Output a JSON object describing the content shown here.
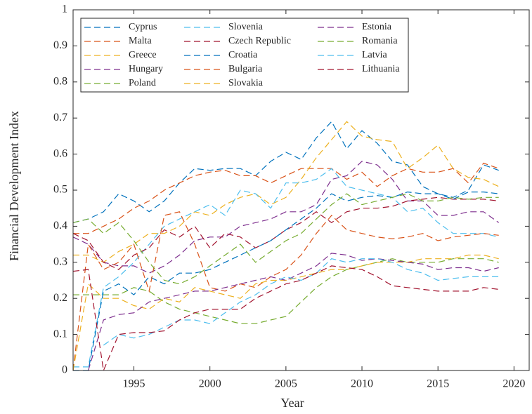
{
  "chart_data": {
    "type": "line",
    "xlabel": "Year",
    "ylabel": "Financial Development Index",
    "x": [
      1991,
      1992,
      1993,
      1994,
      1995,
      1996,
      1997,
      1998,
      1999,
      2000,
      2001,
      2002,
      2003,
      2004,
      2005,
      2006,
      2007,
      2008,
      2009,
      2010,
      2011,
      2012,
      2013,
      2014,
      2015,
      2016,
      2017,
      2018,
      2019
    ],
    "xlim": [
      1991,
      2021
    ],
    "xticks": [
      1995,
      2000,
      2005,
      2010,
      2015,
      2020
    ],
    "ylim": [
      0,
      1
    ],
    "yticks": [
      0,
      0.1,
      0.2,
      0.3,
      0.4,
      0.5,
      0.6,
      0.7,
      0.8,
      0.9,
      1
    ],
    "grid": false,
    "legend": "northwest",
    "dashed": true,
    "series": [
      {
        "name": "Cyprus",
        "color": "#0072BD",
        "values": [
          0.41,
          0.42,
          0.44,
          0.49,
          0.47,
          0.44,
          0.47,
          0.52,
          0.56,
          0.555,
          0.56,
          0.56,
          0.54,
          0.58,
          0.605,
          0.585,
          0.645,
          0.69,
          0.615,
          0.665,
          0.63,
          0.58,
          0.57,
          0.51,
          0.49,
          0.48,
          0.5,
          0.57,
          0.555
        ]
      },
      {
        "name": "Malta",
        "color": "#D95319",
        "values": [
          0.38,
          0.38,
          0.4,
          0.42,
          0.45,
          0.47,
          0.5,
          0.52,
          0.54,
          0.55,
          0.555,
          0.54,
          0.54,
          0.52,
          0.54,
          0.56,
          0.56,
          0.56,
          0.53,
          0.55,
          0.51,
          0.54,
          0.56,
          0.55,
          0.55,
          0.56,
          0.52,
          0.575,
          0.56
        ]
      },
      {
        "name": "Greece",
        "color": "#EDB120",
        "values": [
          0.32,
          0.32,
          0.3,
          0.33,
          0.35,
          0.38,
          0.38,
          0.4,
          0.44,
          0.43,
          0.46,
          0.48,
          0.49,
          0.46,
          0.48,
          0.53,
          0.59,
          0.64,
          0.69,
          0.65,
          0.64,
          0.635,
          0.56,
          0.59,
          0.625,
          0.56,
          0.535,
          0.53,
          0.51
        ]
      },
      {
        "name": "Hungary",
        "color": "#7E2F8E",
        "values": [
          0.37,
          0.35,
          0.3,
          0.29,
          0.29,
          0.27,
          0.29,
          0.32,
          0.36,
          0.37,
          0.37,
          0.4,
          0.41,
          0.42,
          0.44,
          0.44,
          0.46,
          0.53,
          0.54,
          0.58,
          0.57,
          0.53,
          0.47,
          0.47,
          0.43,
          0.43,
          0.44,
          0.44,
          0.41
        ]
      },
      {
        "name": "Poland",
        "color": "#77AC30",
        "values": [
          0.21,
          0.21,
          0.21,
          0.21,
          0.23,
          0.22,
          0.19,
          0.17,
          0.16,
          0.15,
          0.14,
          0.13,
          0.13,
          0.14,
          0.15,
          0.19,
          0.23,
          0.26,
          0.28,
          0.29,
          0.3,
          0.31,
          0.3,
          0.3,
          0.3,
          0.31,
          0.31,
          0.31,
          0.3
        ]
      },
      {
        "name": "Slovenia",
        "color": "#4DBEEE",
        "values": [
          0.01,
          0.01,
          0.23,
          0.26,
          0.3,
          0.35,
          0.4,
          0.42,
          0.44,
          0.46,
          0.43,
          0.5,
          0.49,
          0.45,
          0.52,
          0.52,
          0.53,
          0.56,
          0.51,
          0.5,
          0.49,
          0.48,
          0.44,
          0.45,
          0.41,
          0.38,
          0.38,
          0.38,
          0.37
        ]
      },
      {
        "name": "Czech Republic",
        "color": "#A2142F",
        "values": [
          0.38,
          0.36,
          0.3,
          0.28,
          0.32,
          0.34,
          0.39,
          0.37,
          0.4,
          0.34,
          0.38,
          0.37,
          0.34,
          0.36,
          0.39,
          0.41,
          0.44,
          0.41,
          0.44,
          0.45,
          0.45,
          0.455,
          0.47,
          0.475,
          0.48,
          0.475,
          0.475,
          0.475,
          0.47
        ]
      },
      {
        "name": "Croatia",
        "color": "#0072BD",
        "values": [
          0,
          0,
          0.22,
          0.24,
          0.21,
          0.26,
          0.24,
          0.27,
          0.27,
          0.28,
          0.3,
          0.32,
          0.34,
          0.36,
          0.39,
          0.42,
          0.45,
          0.49,
          0.47,
          0.48,
          0.485,
          0.48,
          0.495,
          0.49,
          0.49,
          0.475,
          0.495,
          0.495,
          0.49
        ]
      },
      {
        "name": "Bulgaria",
        "color": "#D95319",
        "values": [
          0,
          0.35,
          0.28,
          0.3,
          0.35,
          0.22,
          0.43,
          0.44,
          0.35,
          0.23,
          0.22,
          0.24,
          0.23,
          0.26,
          0.28,
          0.32,
          0.38,
          0.43,
          0.39,
          0.38,
          0.37,
          0.365,
          0.37,
          0.38,
          0.36,
          0.37,
          0.375,
          0.38,
          0.375
        ]
      },
      {
        "name": "Slovakia",
        "color": "#EDB120",
        "values": [
          0,
          0.24,
          0.2,
          0.2,
          0.18,
          0.17,
          0.2,
          0.19,
          0.23,
          0.22,
          0.21,
          0.2,
          0.24,
          0.25,
          0.25,
          0.26,
          0.27,
          0.28,
          0.28,
          0.29,
          0.3,
          0.3,
          0.3,
          0.31,
          0.31,
          0.31,
          0.32,
          0.32,
          0.31
        ]
      },
      {
        "name": "Estonia",
        "color": "#7E2F8E",
        "values": [
          null,
          0,
          0.14,
          0.155,
          0.16,
          0.19,
          0.2,
          0.21,
          0.22,
          0.22,
          0.23,
          0.24,
          0.25,
          0.26,
          0.25,
          0.27,
          0.29,
          0.325,
          0.32,
          0.305,
          0.31,
          0.305,
          0.3,
          0.295,
          0.28,
          0.285,
          0.285,
          0.275,
          0.285
        ]
      },
      {
        "name": "Romania",
        "color": "#77AC30",
        "values": [
          0.41,
          0.42,
          0.38,
          0.41,
          0.36,
          0.3,
          0.25,
          0.24,
          0.26,
          0.29,
          0.32,
          0.35,
          0.3,
          0.33,
          0.36,
          0.38,
          0.42,
          0.46,
          0.49,
          0.46,
          0.47,
          0.48,
          0.49,
          0.47,
          0.47,
          0.48,
          0.475,
          0.48,
          0.48
        ]
      },
      {
        "name": "Latvia",
        "color": "#4DBEEE",
        "values": [
          null,
          null,
          0.07,
          0.1,
          0.09,
          0.1,
          0.12,
          0.14,
          0.14,
          0.13,
          0.16,
          0.19,
          0.21,
          0.24,
          0.26,
          0.25,
          0.27,
          0.31,
          0.3,
          0.31,
          0.31,
          0.3,
          0.28,
          0.27,
          0.25,
          0.255,
          0.26,
          0.26,
          0.26
        ]
      },
      {
        "name": "Lithuania",
        "color": "#A2142F",
        "values": [
          0.275,
          0.28,
          0,
          0.1,
          0.105,
          0.105,
          0.11,
          0.14,
          0.16,
          0.17,
          0.17,
          0.17,
          0.2,
          0.22,
          0.24,
          0.25,
          0.27,
          0.29,
          0.285,
          0.28,
          0.26,
          0.235,
          0.23,
          0.225,
          0.22,
          0.22,
          0.22,
          0.23,
          0.225
        ]
      }
    ]
  }
}
